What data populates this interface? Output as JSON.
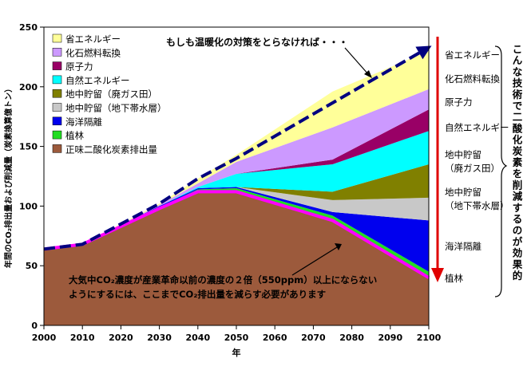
{
  "chart_data": {
    "type": "area",
    "xlabel": "年",
    "ylabel": "年間のCO₂排出量および削減量（炭素換算億トン）",
    "xlim": [
      2000,
      2100
    ],
    "ylim": [
      0,
      250
    ],
    "x_ticks": [
      "2000",
      "2010",
      "2020",
      "2030",
      "2040",
      "2050",
      "2060",
      "2070",
      "2080",
      "2090",
      "2100"
    ],
    "y_ticks": [
      "0",
      "50",
      "100",
      "150",
      "200",
      "250"
    ],
    "x": [
      2000,
      2010,
      2030,
      2040,
      2050,
      2075,
      2100
    ],
    "series": [
      {
        "name": "正味二酸化炭素排出量",
        "color": "#9C5A3C",
        "values": [
          64,
          68,
          98,
          112,
          112,
          88,
          40
        ]
      },
      {
        "name": "植林",
        "color": "#22DD22",
        "values": [
          0,
          0,
          1,
          2,
          3,
          4,
          5
        ]
      },
      {
        "name": "海洋隔離",
        "color": "#0000EE",
        "values": [
          0,
          0,
          1,
          1,
          1,
          3,
          43
        ]
      },
      {
        "name": "地中貯留（地下帯水層）",
        "color": "#C8C8C8",
        "values": [
          0,
          0,
          0,
          0,
          0,
          10,
          19
        ]
      },
      {
        "name": "地中貯留（廃ガス田）",
        "color": "#808000",
        "values": [
          0,
          0,
          0,
          0,
          0,
          7,
          28
        ]
      },
      {
        "name": "自然エネルギー",
        "color": "#00FFFF",
        "values": [
          0,
          0,
          0,
          1,
          11,
          23,
          28
        ]
      },
      {
        "name": "原子力",
        "color": "#990066",
        "values": [
          0,
          0,
          0,
          0,
          0,
          4,
          18
        ]
      },
      {
        "name": "化石燃料転換",
        "color": "#CC99FF",
        "values": [
          0,
          0,
          1,
          3,
          10,
          27,
          17
        ]
      },
      {
        "name": "省エネルギー",
        "color": "#FFFF99",
        "values": [
          0,
          0,
          1,
          4,
          6,
          30,
          32
        ]
      }
    ],
    "bau": {
      "x": [
        2000,
        2010,
        2030,
        2040,
        2050,
        2100
      ],
      "values": [
        64,
        68,
        102,
        123,
        140,
        233
      ],
      "color": "#000080"
    },
    "target": {
      "x": [
        2000,
        2010,
        2030,
        2040,
        2050,
        2075,
        2100
      ],
      "values": [
        64,
        68,
        98,
        112,
        112,
        88,
        40
      ],
      "color": "#FF00FF"
    },
    "legend": [
      {
        "label": "省エネルギー",
        "color": "#FFFF99"
      },
      {
        "label": "化石燃料転換",
        "color": "#CC99FF"
      },
      {
        "label": "原子力",
        "color": "#990066"
      },
      {
        "label": "自然エネルギー",
        "color": "#00FFFF"
      },
      {
        "label": "地中貯留（廃ガス田）",
        "color": "#808000"
      },
      {
        "label": "地中貯留（地下帯水層）",
        "color": "#C8C8C8"
      },
      {
        "label": "海洋隔離",
        "color": "#0000EE"
      },
      {
        "label": "植林",
        "color": "#22DD22"
      },
      {
        "label": "正味二酸化炭素排出量",
        "color": "#9C5A3C"
      }
    ],
    "annotations": {
      "bau_note": "もしも温暖化の対策をとらなければ・・・",
      "target_note_line1": "大気中CO₂濃度が産業革命以前の濃度の２倍（550ppm）以上にならない",
      "target_note_line2": "ようにするには、ここまでCO₂排出量を減らす必要があります",
      "side_labels": [
        "省エネルギー",
        "化石燃料転換",
        "原子力",
        "自然エネルギー",
        "地中貯留",
        "（廃ガス田）",
        "地中貯留",
        "（地下帯水層）",
        "海洋隔離",
        "植林"
      ],
      "vertical_note": "こんな技術で二酸化炭素を削減するのが効果的"
    },
    "grid": false
  }
}
